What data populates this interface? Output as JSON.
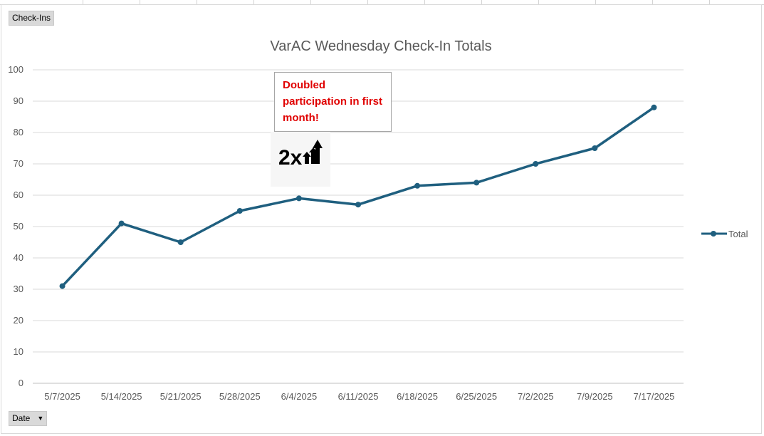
{
  "pivot_fields": {
    "values_field": "Check-Ins",
    "axis_field": "Date"
  },
  "annotation": {
    "text": "Doubled participation in first month!",
    "icon": "2x-growth-arrows-icon",
    "color": "#e00000"
  },
  "chart_data": {
    "type": "line",
    "title": "VarAC Wednesday Check-In Totals",
    "categories": [
      "5/7/2025",
      "5/14/2025",
      "5/21/2025",
      "5/28/2025",
      "6/4/2025",
      "6/11/2025",
      "6/18/2025",
      "6/25/2025",
      "7/2/2025",
      "7/9/2025",
      "7/17/2025"
    ],
    "series": [
      {
        "name": "Total",
        "values": [
          31,
          51,
          45,
          55,
          59,
          57,
          63,
          64,
          70,
          75,
          88
        ],
        "color": "#1f5f7f"
      }
    ],
    "yticks": [
      "0",
      "10",
      "20",
      "30",
      "40",
      "50",
      "60",
      "70",
      "80",
      "90",
      "100"
    ],
    "ylim": [
      0,
      100
    ],
    "grid": true,
    "legend": "right",
    "xlabel": "",
    "ylabel": ""
  }
}
